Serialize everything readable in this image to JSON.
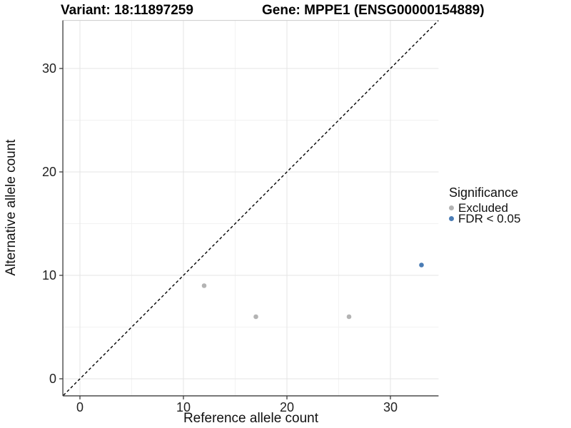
{
  "chart_data": {
    "type": "scatter",
    "title_left": "Variant: 18:11897259",
    "title_right": "Gene: MPPE1 (ENSG00000154889)",
    "xlabel": "Reference allele count",
    "ylabel": "Alternative allele count",
    "xlim": [
      -1.65,
      34.65
    ],
    "ylim": [
      -1.65,
      34.65
    ],
    "x_ticks": [
      0,
      10,
      20,
      30
    ],
    "y_ticks": [
      0,
      10,
      20,
      30
    ],
    "x_minor_ticks": [
      5,
      15,
      25
    ],
    "y_minor_ticks": [
      5,
      15,
      25
    ],
    "grid": "major-and-minor",
    "identity_line": {
      "slope": 1,
      "intercept": 0,
      "style": "dashed",
      "color": "#000000"
    },
    "series": [
      {
        "name": "Excluded",
        "color": "#b3b3b3",
        "points": [
          [
            12,
            9
          ],
          [
            17,
            6
          ],
          [
            26,
            6
          ]
        ]
      },
      {
        "name": "FDR < 0.05",
        "color": "#4a7cb5",
        "points": [
          [
            33,
            11
          ]
        ]
      }
    ],
    "legend": {
      "title": "Significance",
      "position": "right"
    }
  },
  "style_colors": {
    "major_grid": "#e4e4e4",
    "minor_grid": "#f2f2f2",
    "panel_top_border": "#cccccc",
    "axis_line": "#3c3c3c",
    "tick_label": "#222222"
  }
}
